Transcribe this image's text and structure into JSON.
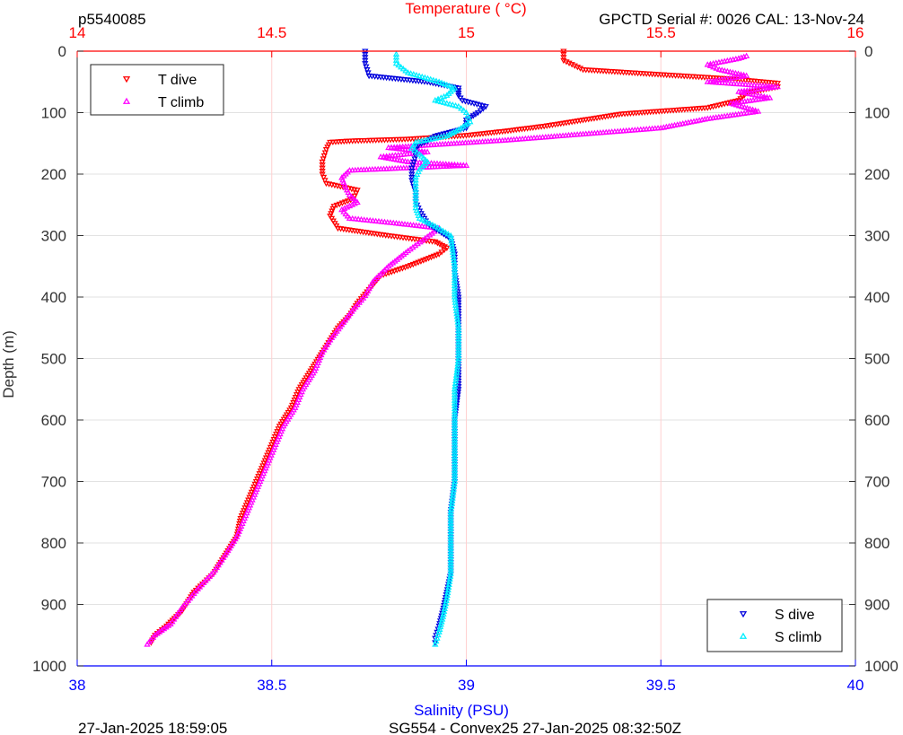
{
  "header": {
    "profile_id": "p5540085",
    "serial_info": "GPCTD Serial #: 0026 CAL: 13-Nov-24"
  },
  "footer": {
    "left_timestamp": "27-Jan-2025 18:59:05",
    "center_info": "SG554 - Convex25 27-Jan-2025 08:32:50Z"
  },
  "colors": {
    "temperature_axis": "#ff0000",
    "salinity_axis": "#0000ff",
    "t_dive": "#ff0000",
    "t_climb": "#ff00ff",
    "s_dive": "#0000dd",
    "s_climb": "#00eeff",
    "grid_h": "#e2e2e2",
    "grid_v": "#ffd0d0"
  },
  "chart_data": {
    "type": "scatter",
    "top_axis": {
      "label": "Temperature (    °C)",
      "range": [
        14,
        16
      ],
      "ticks": [
        "14",
        "14.5",
        "15",
        "15.5",
        "16"
      ]
    },
    "bottom_axis": {
      "label": "Salinity (PSU)",
      "range": [
        38,
        40
      ],
      "ticks": [
        "38",
        "38.5",
        "39",
        "39.5",
        "40"
      ]
    },
    "left_axis": {
      "label": "Depth (m)",
      "range": [
        0,
        1000
      ],
      "inverted": true,
      "ticks": [
        "0",
        "100",
        "200",
        "300",
        "400",
        "500",
        "600",
        "700",
        "800",
        "900",
        "1000"
      ]
    },
    "right_axis": {
      "range": [
        0,
        1000
      ],
      "inverted": true,
      "ticks": [
        "0",
        "100",
        "200",
        "300",
        "400",
        "500",
        "600",
        "700",
        "800",
        "900",
        "1000"
      ]
    },
    "grid": true,
    "legends": [
      {
        "placement": "top-left",
        "entries": [
          {
            "name": "T dive",
            "series": "t_dive"
          },
          {
            "name": "T climb",
            "series": "t_climb"
          }
        ]
      },
      {
        "placement": "bottom-right",
        "entries": [
          {
            "name": "S dive",
            "series": "s_dive"
          },
          {
            "name": "S climb",
            "series": "s_climb"
          }
        ]
      }
    ],
    "series": [
      {
        "id": "t_dive",
        "name": "T dive",
        "axis": "temperature",
        "marker": "triangle-down",
        "points": [
          [
            15.25,
            0
          ],
          [
            15.25,
            15
          ],
          [
            15.3,
            30
          ],
          [
            15.5,
            38
          ],
          [
            15.68,
            45
          ],
          [
            15.8,
            52
          ],
          [
            15.8,
            58
          ],
          [
            15.72,
            68
          ],
          [
            15.7,
            80
          ],
          [
            15.62,
            92
          ],
          [
            15.4,
            102
          ],
          [
            15.3,
            112
          ],
          [
            15.2,
            122
          ],
          [
            15.1,
            130
          ],
          [
            15.0,
            137
          ],
          [
            14.85,
            143
          ],
          [
            14.7,
            146
          ],
          [
            14.65,
            148
          ],
          [
            14.64,
            160
          ],
          [
            14.63,
            180
          ],
          [
            14.63,
            200
          ],
          [
            14.64,
            215
          ],
          [
            14.72,
            226
          ],
          [
            14.71,
            240
          ],
          [
            14.66,
            252
          ],
          [
            14.65,
            268
          ],
          [
            14.67,
            288
          ],
          [
            14.8,
            300
          ],
          [
            14.92,
            310
          ],
          [
            14.95,
            320
          ],
          [
            14.93,
            330
          ],
          [
            14.85,
            350
          ],
          [
            14.78,
            365
          ],
          [
            14.76,
            380
          ],
          [
            14.74,
            395
          ],
          [
            14.72,
            410
          ],
          [
            14.7,
            430
          ],
          [
            14.67,
            450
          ],
          [
            14.65,
            470
          ],
          [
            14.63,
            490
          ],
          [
            14.6,
            520
          ],
          [
            14.57,
            550
          ],
          [
            14.55,
            580
          ],
          [
            14.52,
            610
          ],
          [
            14.5,
            640
          ],
          [
            14.48,
            670
          ],
          [
            14.46,
            700
          ],
          [
            14.44,
            730
          ],
          [
            14.42,
            760
          ],
          [
            14.41,
            790
          ],
          [
            14.38,
            820
          ],
          [
            14.35,
            850
          ],
          [
            14.3,
            880
          ],
          [
            14.27,
            910
          ],
          [
            14.23,
            935
          ],
          [
            14.2,
            950
          ],
          [
            14.19,
            962
          ]
        ]
      },
      {
        "id": "t_climb",
        "name": "T climb",
        "axis": "temperature",
        "marker": "triangle-up",
        "points": [
          [
            14.18,
            965
          ],
          [
            14.2,
            950
          ],
          [
            14.24,
            932
          ],
          [
            14.27,
            905
          ],
          [
            14.31,
            875
          ],
          [
            14.35,
            848
          ],
          [
            14.38,
            820
          ],
          [
            14.41,
            790
          ],
          [
            14.43,
            760
          ],
          [
            14.45,
            730
          ],
          [
            14.47,
            700
          ],
          [
            14.49,
            670
          ],
          [
            14.51,
            640
          ],
          [
            14.53,
            610
          ],
          [
            14.56,
            580
          ],
          [
            14.58,
            550
          ],
          [
            14.61,
            520
          ],
          [
            14.63,
            490
          ],
          [
            14.65,
            470
          ],
          [
            14.68,
            445
          ],
          [
            14.71,
            420
          ],
          [
            14.74,
            398
          ],
          [
            14.76,
            375
          ],
          [
            14.8,
            350
          ],
          [
            14.85,
            325
          ],
          [
            14.9,
            302
          ],
          [
            14.93,
            288
          ],
          [
            14.82,
            280
          ],
          [
            14.7,
            272
          ],
          [
            14.68,
            258
          ],
          [
            14.72,
            246
          ],
          [
            14.7,
            234
          ],
          [
            14.69,
            222
          ],
          [
            14.68,
            206
          ],
          [
            14.7,
            194
          ],
          [
            15.0,
            186
          ],
          [
            14.85,
            180
          ],
          [
            14.78,
            172
          ],
          [
            14.9,
            164
          ],
          [
            14.8,
            157
          ],
          [
            15.1,
            145
          ],
          [
            15.3,
            135
          ],
          [
            15.5,
            125
          ],
          [
            15.62,
            110
          ],
          [
            15.75,
            98
          ],
          [
            15.68,
            85
          ],
          [
            15.78,
            76
          ],
          [
            15.7,
            66
          ],
          [
            15.8,
            58
          ],
          [
            15.62,
            50
          ],
          [
            15.72,
            40
          ],
          [
            15.65,
            30
          ],
          [
            15.62,
            22
          ],
          [
            15.7,
            12
          ],
          [
            15.72,
            8
          ]
        ]
      },
      {
        "id": "s_dive",
        "name": "S dive",
        "axis": "salinity",
        "marker": "triangle-down",
        "points": [
          [
            38.74,
            0
          ],
          [
            38.74,
            20
          ],
          [
            38.75,
            40
          ],
          [
            38.9,
            50
          ],
          [
            38.98,
            60
          ],
          [
            38.98,
            72
          ],
          [
            38.99,
            80
          ],
          [
            39.05,
            90
          ],
          [
            39.03,
            100
          ],
          [
            39.0,
            112
          ],
          [
            39.0,
            125
          ],
          [
            38.92,
            138
          ],
          [
            38.9,
            146
          ],
          [
            38.87,
            155
          ],
          [
            38.87,
            170
          ],
          [
            38.86,
            190
          ],
          [
            38.86,
            210
          ],
          [
            38.87,
            230
          ],
          [
            38.87,
            245
          ],
          [
            38.88,
            260
          ],
          [
            38.9,
            280
          ],
          [
            38.96,
            305
          ],
          [
            38.97,
            330
          ],
          [
            38.97,
            360
          ],
          [
            38.98,
            400
          ],
          [
            38.98,
            450
          ],
          [
            38.98,
            500
          ],
          [
            38.98,
            550
          ],
          [
            38.97,
            600
          ],
          [
            38.97,
            650
          ],
          [
            38.97,
            700
          ],
          [
            38.96,
            750
          ],
          [
            38.96,
            800
          ],
          [
            38.96,
            850
          ],
          [
            38.95,
            880
          ],
          [
            38.94,
            910
          ],
          [
            38.93,
            935
          ],
          [
            38.92,
            955
          ],
          [
            38.92,
            962
          ]
        ]
      },
      {
        "id": "s_climb",
        "name": "S climb",
        "axis": "salinity",
        "marker": "triangle-up",
        "points": [
          [
            38.92,
            965
          ],
          [
            38.93,
            945
          ],
          [
            38.94,
            920
          ],
          [
            38.95,
            890
          ],
          [
            38.96,
            850
          ],
          [
            38.96,
            800
          ],
          [
            38.96,
            750
          ],
          [
            38.97,
            700
          ],
          [
            38.97,
            650
          ],
          [
            38.97,
            600
          ],
          [
            38.97,
            550
          ],
          [
            38.98,
            500
          ],
          [
            38.98,
            450
          ],
          [
            38.97,
            400
          ],
          [
            38.97,
            350
          ],
          [
            38.96,
            300
          ],
          [
            38.92,
            285
          ],
          [
            38.88,
            272
          ],
          [
            38.87,
            255
          ],
          [
            38.87,
            230
          ],
          [
            38.87,
            205
          ],
          [
            38.88,
            192
          ],
          [
            38.9,
            180
          ],
          [
            38.88,
            168
          ],
          [
            38.86,
            158
          ],
          [
            38.87,
            148
          ],
          [
            38.95,
            138
          ],
          [
            38.98,
            128
          ],
          [
            39.01,
            115
          ],
          [
            39.0,
            100
          ],
          [
            38.98,
            90
          ],
          [
            38.92,
            80
          ],
          [
            38.95,
            72
          ],
          [
            38.97,
            60
          ],
          [
            38.93,
            50
          ],
          [
            38.85,
            35
          ],
          [
            38.82,
            20
          ],
          [
            38.82,
            5
          ]
        ]
      }
    ]
  }
}
